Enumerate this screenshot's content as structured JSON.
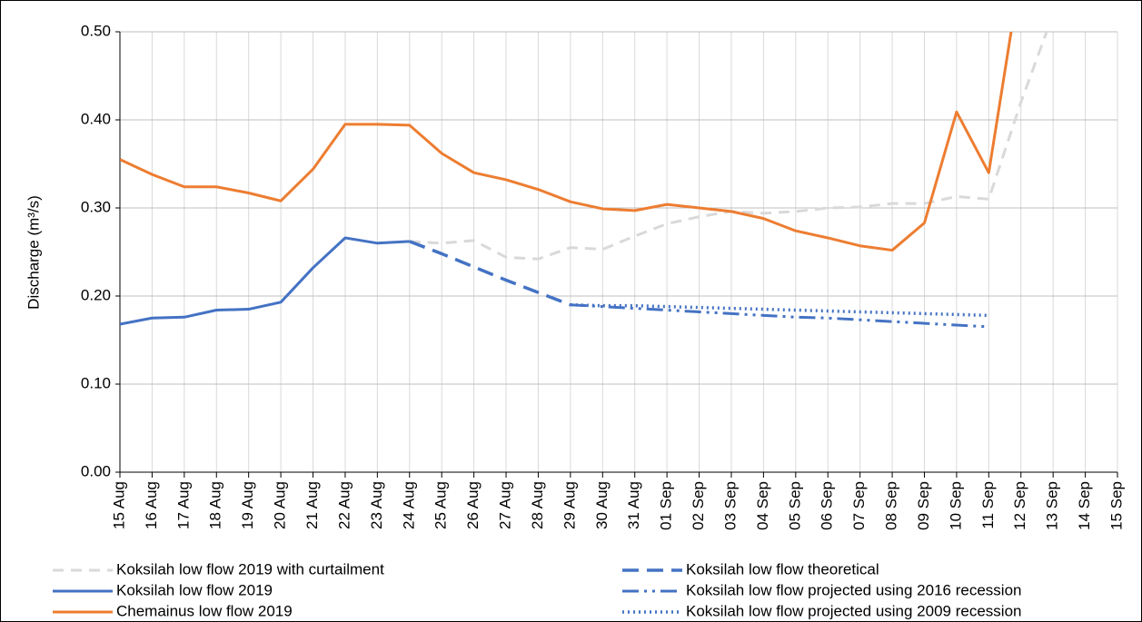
{
  "chart_data": {
    "type": "line",
    "y_label": "Discharge (m³/s)",
    "categories": [
      "15 Aug",
      "16 Aug",
      "17 Aug",
      "18 Aug",
      "19 Aug",
      "20 Aug",
      "21 Aug",
      "22 Aug",
      "23 Aug",
      "24 Aug",
      "25 Aug",
      "26 Aug",
      "27 Aug",
      "28 Aug",
      "29 Aug",
      "30 Aug",
      "31 Aug",
      "01 Sep",
      "02 Sep",
      "03 Sep",
      "04 Sep",
      "05 Sep",
      "06 Sep",
      "07 Sep",
      "08 Sep",
      "09 Sep",
      "10 Sep",
      "11 Sep",
      "12 Sep",
      "13 Sep",
      "14 Sep",
      "15 Sep"
    ],
    "ylim": [
      0,
      0.5
    ],
    "yticks": [
      {
        "value": 0,
        "label": "0.00"
      },
      {
        "value": 0.1,
        "label": "0.10"
      },
      {
        "value": 0.2,
        "label": "0.20"
      },
      {
        "value": 0.3,
        "label": "0.30"
      },
      {
        "value": 0.4,
        "label": "0.40"
      },
      {
        "value": 0.5,
        "label": "0.50"
      }
    ],
    "grid": true,
    "legend": "bottom",
    "series": [
      {
        "name": "Koksilah low flow 2019 with curtailment",
        "color": "#d9d9d9",
        "style": "dashed",
        "values": [
          null,
          null,
          null,
          null,
          null,
          null,
          null,
          null,
          null,
          0.262,
          0.26,
          0.263,
          0.244,
          0.242,
          0.255,
          0.253,
          0.268,
          0.282,
          0.29,
          0.296,
          0.294,
          0.296,
          0.3,
          0.301,
          0.305,
          0.305,
          0.313,
          0.31,
          0.42,
          0.52,
          null,
          null
        ]
      },
      {
        "name": "Koksilah low flow 2019",
        "color": "#4472c4",
        "style": "solid",
        "values": [
          0.168,
          0.175,
          0.176,
          0.184,
          0.185,
          0.193,
          0.232,
          0.266,
          0.26,
          0.262,
          null,
          null,
          null,
          null,
          null,
          null,
          null,
          null,
          null,
          null,
          null,
          null,
          null,
          null,
          null,
          null,
          null,
          null,
          null,
          null,
          null,
          null
        ]
      },
      {
        "name": "Chemainus low flow 2019",
        "color": "#ed7d31",
        "style": "solid",
        "values": [
          0.355,
          0.338,
          0.324,
          0.324,
          0.317,
          0.308,
          0.344,
          0.395,
          0.395,
          0.394,
          0.362,
          0.34,
          0.332,
          0.321,
          0.307,
          0.299,
          0.297,
          0.304,
          0.3,
          0.296,
          0.288,
          0.274,
          0.266,
          0.257,
          0.252,
          0.283,
          0.409,
          0.34,
          0.57,
          null,
          null,
          null
        ]
      },
      {
        "name": "Koksilah low flow theoretical",
        "color": "#4472c4",
        "style": "long-dash",
        "values": [
          null,
          null,
          null,
          null,
          null,
          null,
          null,
          null,
          null,
          0.262,
          0.248,
          0.233,
          0.218,
          0.204,
          0.19,
          null,
          null,
          null,
          null,
          null,
          null,
          null,
          null,
          null,
          null,
          null,
          null,
          null,
          null,
          null,
          null,
          null
        ]
      },
      {
        "name": "Koksilah low flow projected using 2016 recession",
        "color": "#4472c4",
        "style": "dash-dot",
        "values": [
          null,
          null,
          null,
          null,
          null,
          null,
          null,
          null,
          null,
          null,
          null,
          null,
          null,
          null,
          0.19,
          0.188,
          0.186,
          0.184,
          0.182,
          0.18,
          0.178,
          0.176,
          0.175,
          0.173,
          0.171,
          0.169,
          0.167,
          0.165,
          null,
          null,
          null,
          null
        ]
      },
      {
        "name": "Koksilah low flow projected using 2009 recession",
        "color": "#4472c4",
        "style": "dotted",
        "values": [
          null,
          null,
          null,
          null,
          null,
          null,
          null,
          null,
          null,
          null,
          null,
          null,
          null,
          null,
          0.19,
          0.189,
          0.189,
          0.188,
          0.187,
          0.186,
          0.185,
          0.184,
          0.183,
          0.182,
          0.181,
          0.18,
          0.179,
          0.178,
          null,
          null,
          null,
          null
        ]
      }
    ]
  }
}
